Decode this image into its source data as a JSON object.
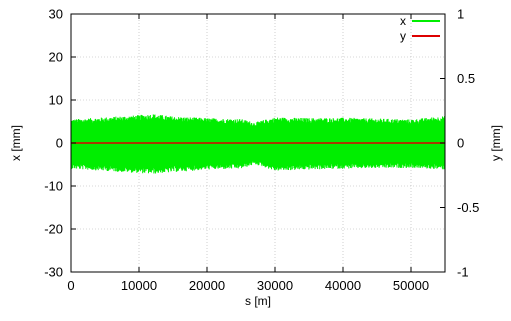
{
  "chart_data": {
    "type": "line",
    "xlabel": "s [m]",
    "ylabel_left": "x [mm]",
    "ylabel_right": "y [mm]",
    "xlim": [
      0,
      55000
    ],
    "ylim_left": [
      -30,
      30
    ],
    "ylim_right": [
      -1,
      1
    ],
    "x_ticks": [
      0,
      10000,
      20000,
      30000,
      40000,
      50000
    ],
    "y_ticks_left": [
      -30,
      -20,
      -10,
      0,
      10,
      20,
      30
    ],
    "y_ticks_right": [
      -1,
      -0.5,
      0,
      0.5,
      1
    ],
    "grid": true,
    "legend_position": "top-right",
    "series": [
      {
        "name": "x",
        "axis": "left",
        "color": "#00ee00",
        "style": "dense-oscillation-band",
        "envelope_s": [
          0,
          5000,
          10000,
          12000,
          15000,
          20000,
          25000,
          27000,
          28000,
          30000,
          35000,
          40000,
          45000,
          50000,
          55000
        ],
        "envelope_upper": [
          5.5,
          6.0,
          6.5,
          6.8,
          6.2,
          5.8,
          5.6,
          4.8,
          5.2,
          6.0,
          5.8,
          5.9,
          5.7,
          5.5,
          6.3
        ],
        "envelope_lower": [
          -6.0,
          -6.5,
          -7.0,
          -7.2,
          -6.8,
          -6.2,
          -6.0,
          -5.0,
          -5.4,
          -6.5,
          -6.2,
          -6.0,
          -5.9,
          -5.8,
          -6.2
        ]
      },
      {
        "name": "y",
        "axis": "right",
        "color": "#dd0000",
        "x": [
          0,
          55000
        ],
        "values": [
          0,
          0
        ]
      }
    ]
  }
}
